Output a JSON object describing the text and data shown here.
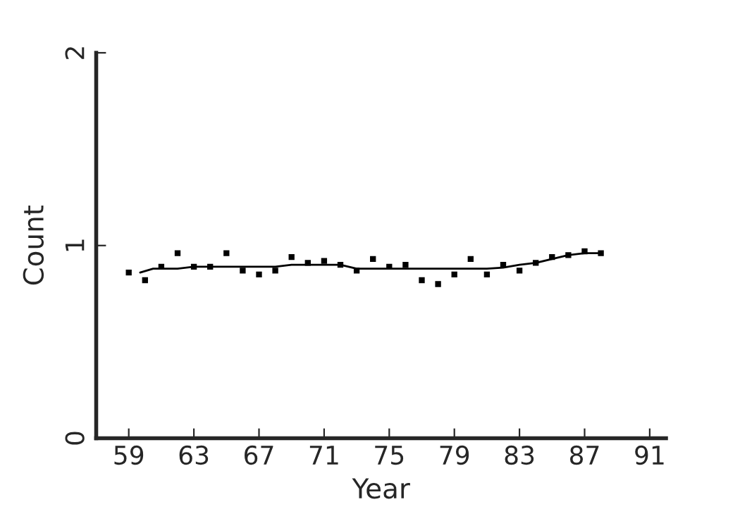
{
  "chart_data": {
    "type": "scatter",
    "xlabel": "Year",
    "ylabel": "Count",
    "xlim": [
      57,
      92
    ],
    "xticks": [
      59,
      63,
      67,
      71,
      75,
      79,
      83,
      87,
      91
    ],
    "ylim": [
      0,
      2
    ],
    "yticks": [
      0,
      1,
      2
    ],
    "grid": false,
    "series": [
      {
        "marker": "square",
        "color": "#000000",
        "x": [
          59,
          60,
          61,
          62,
          63,
          64,
          65,
          66,
          67,
          68,
          69,
          70,
          71,
          72,
          73,
          74,
          75,
          76,
          77,
          78,
          79,
          80,
          81,
          82,
          83,
          84,
          85,
          86,
          87,
          88
        ],
        "values": [
          0.86,
          0.82,
          0.89,
          0.96,
          0.89,
          0.89,
          0.96,
          0.87,
          0.85,
          0.87,
          0.94,
          0.91,
          0.92,
          0.9,
          0.87,
          0.93,
          0.89,
          0.9,
          0.82,
          0.8,
          0.85,
          0.93,
          0.85,
          0.9,
          0.87,
          0.91,
          0.94,
          0.95,
          0.97,
          0.96
        ]
      },
      {
        "type": "line",
        "marker": "none",
        "color": "#000000",
        "x": [
          59.7,
          60.5,
          62,
          63,
          68,
          69,
          72,
          73,
          81,
          82,
          83,
          84,
          85,
          86,
          87,
          88
        ],
        "values": [
          0.86,
          0.88,
          0.88,
          0.89,
          0.89,
          0.9,
          0.9,
          0.88,
          0.88,
          0.885,
          0.9,
          0.91,
          0.93,
          0.95,
          0.96,
          0.96
        ]
      }
    ]
  }
}
